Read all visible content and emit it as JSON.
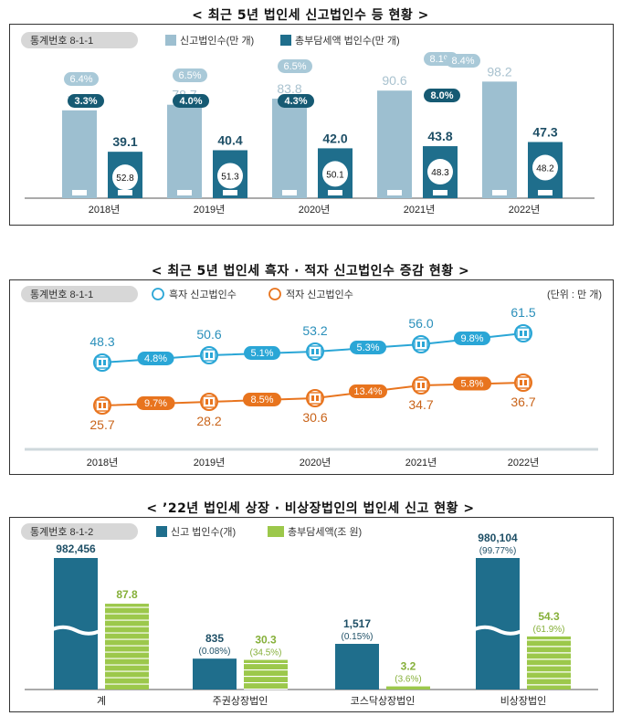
{
  "chart_data": [
    {
      "type": "bar",
      "title": "< 최근 5년 법인세 신고법인수 등 현황 >",
      "stat_code": "통계번호 8-1-1",
      "categories": [
        "2018년",
        "2019년",
        "2020년",
        "2021년",
        "2022년"
      ],
      "series": [
        {
          "name": "신고법인수(만 개)",
          "values": [
            74.0,
            78.7,
            83.8,
            90.6,
            98.2
          ],
          "growth_labels": [
            "6.4%",
            "6.5%",
            "6.5%",
            "8.1%",
            "8.4%"
          ]
        },
        {
          "name": "총부담세액 법인수(만 개)",
          "values": [
            39.1,
            40.4,
            42.0,
            43.8,
            47.3
          ],
          "growth_labels": [
            "3.3%",
            "4.0%",
            "4.3%",
            "8.0%"
          ],
          "share_labels": [
            "52.8",
            "51.3",
            "50.1",
            "48.3",
            "48.2"
          ]
        }
      ],
      "colors": {
        "filed": "#9dbfd0",
        "taxed": "#1f6e8c",
        "pill_light": "#a9c9d8",
        "pill_dark": "#165a73"
      }
    },
    {
      "type": "line",
      "title": "< 최근 5년 법인세 흑자 · 적자 신고법인수 증감 현황 >",
      "stat_code": "통계번호 8-1-1",
      "unit": "(단위 : 만 개)",
      "categories": [
        "2018년",
        "2019년",
        "2020년",
        "2021년",
        "2022년"
      ],
      "series": [
        {
          "name": "흑자 신고법인수",
          "values": [
            48.3,
            50.6,
            53.2,
            56.0,
            61.5
          ],
          "growth_labels": [
            "4.8%",
            "5.1%",
            "5.3%",
            "9.8%"
          ]
        },
        {
          "name": "적자 신고법인수",
          "values": [
            25.7,
            28.2,
            30.6,
            34.7,
            36.7
          ],
          "growth_labels": [
            "9.7%",
            "8.5%",
            "13.4%",
            "5.8%"
          ]
        }
      ],
      "colors": {
        "surplus": "#2aa6d6",
        "deficit": "#e8741e"
      }
    },
    {
      "type": "bar",
      "title": "< ’22년 법인세 상장 · 비상장법인의 법인세 신고 현황 >",
      "stat_code": "통계번호 8-1-2",
      "categories": [
        "계",
        "주권상장법인",
        "코스닥상장법인",
        "비상장법인"
      ],
      "series": [
        {
          "name": "신고 법인수(개)",
          "values": [
            982456,
            835,
            1517,
            980104
          ],
          "labels": [
            "982,456",
            "835",
            "1,517",
            "980,104"
          ],
          "share_labels": [
            "",
            "(0.08%)",
            "(0.15%)",
            "(99.77%)"
          ]
        },
        {
          "name": "총부담세액(조 원)",
          "values": [
            87.8,
            30.3,
            3.2,
            54.3
          ],
          "labels": [
            "87.8",
            "30.3",
            "3.2",
            "54.3"
          ],
          "share_labels": [
            "",
            "(34.5%)",
            "(3.6%)",
            "(61.9%)"
          ]
        }
      ],
      "colors": {
        "count": "#1f6e8c",
        "tax": "#9cc84b"
      }
    }
  ]
}
